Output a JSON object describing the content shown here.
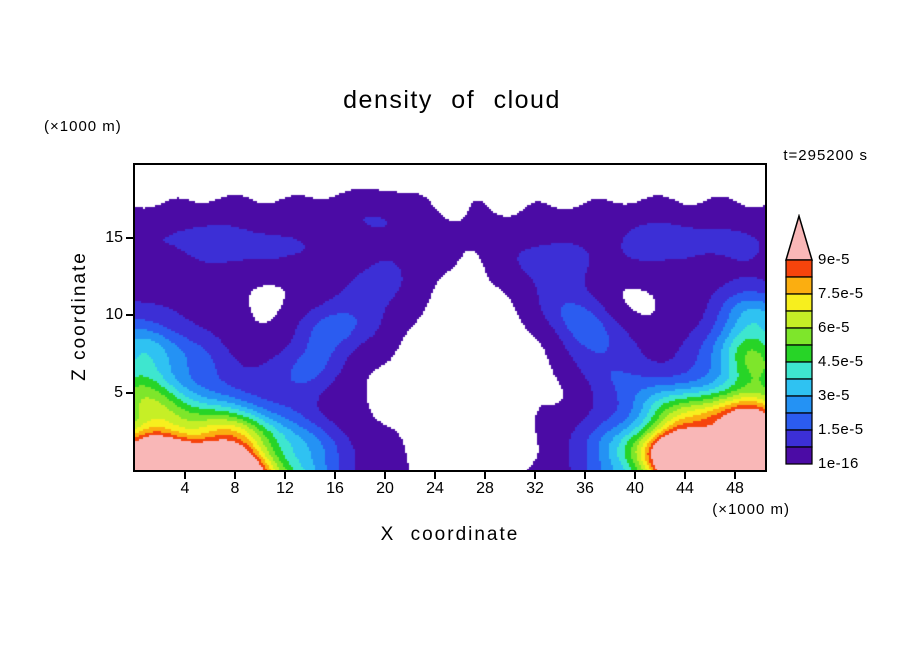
{
  "chart_data": {
    "type": "heatmap",
    "title": "density of cloud",
    "xlabel": "X coordinate",
    "ylabel": "Z coordinate",
    "x_unit_label": "(×1000 m)",
    "z_unit_label": "(×1000 m)",
    "time_annotation": "t=295200 s",
    "xlim": [
      0,
      50.4
    ],
    "zlim": [
      0,
      19.7
    ],
    "x_ticks": [
      4,
      8,
      12,
      16,
      20,
      24,
      28,
      32,
      36,
      40,
      44,
      48
    ],
    "z_ticks": [
      5,
      10,
      15
    ],
    "grid": false,
    "legend_position": "right-colorbar",
    "contour_levels": [
      1e-16,
      7.5e-06,
      1.5e-05,
      2.25e-05,
      3e-05,
      3.75e-05,
      4.5e-05,
      5.25e-05,
      6e-05,
      6.75e-05,
      7.5e-05,
      8.25e-05,
      9e-05
    ],
    "colorbar": {
      "boundary_labels_bottom_up": [
        "1e-16",
        "1.5e-5",
        "3e-5",
        "4.5e-5",
        "6e-5",
        "7.5e-5",
        "9e-5"
      ],
      "label_every_n_segments": 2,
      "segment_colors_bottom_up": [
        "#4b0ba5",
        "#3c2fd6",
        "#2b5cf0",
        "#2492f4",
        "#2fc2f2",
        "#3ee6cf",
        "#27d427",
        "#7ee62b",
        "#c6ef26",
        "#f7ef1e",
        "#fbae10",
        "#f6440c"
      ],
      "over_color": "#f9b7b7",
      "under_color": "#ffffff"
    },
    "field_model": {
      "comment": "approximate reconstruction of the shaded contour field; amplitudes in units of value_scale",
      "value_scale": 1e-05,
      "threshold": 0.1,
      "gaussians": [
        {
          "amp": 14.0,
          "x0": 5.0,
          "sx": 7.6,
          "z0": 0.0,
          "sz": 3.1,
          "tilt": 0
        },
        {
          "amp": 15.0,
          "x0": 46.5,
          "sx": 6.8,
          "z0": 0.5,
          "sz": 3.4,
          "tilt": 0
        },
        {
          "amp": 4.2,
          "x0": 0.5,
          "sx": 5.5,
          "z0": 5.6,
          "sz": 4.0,
          "tilt": 0
        },
        {
          "amp": 3.6,
          "x0": 50.0,
          "sx": 5.0,
          "z0": 5.0,
          "sz": 3.6,
          "tilt": 0
        },
        {
          "amp": 3.0,
          "x0": 49.5,
          "sx": 3.5,
          "z0": 9.0,
          "sz": 2.6,
          "tilt": 0
        },
        {
          "amp": 1.8,
          "x0": 7.5,
          "sx": 3.4,
          "z0": 8.5,
          "sz": 4.6,
          "tilt": 0.95
        },
        {
          "amp": 1.8,
          "x0": 44.0,
          "sx": 3.0,
          "z0": 8.5,
          "sz": 4.6,
          "tilt": -0.85
        },
        {
          "amp": 1.05,
          "x0": 7.5,
          "sx": 9.5,
          "z0": 14.6,
          "sz": 1.9,
          "tilt": 0
        },
        {
          "amp": 1.05,
          "x0": 43.0,
          "sx": 9.5,
          "z0": 14.6,
          "sz": 1.9,
          "tilt": 0
        },
        {
          "amp": 0.55,
          "x0": 19.0,
          "sx": 3.5,
          "z0": 16.3,
          "sz": 1.4,
          "tilt": 0
        },
        {
          "amp": 0.5,
          "x0": 33.0,
          "sx": 3.0,
          "z0": 13.2,
          "sz": 1.2,
          "tilt": 0
        }
      ],
      "wave": {
        "mul_amp": 0.2,
        "mk": [
          0.6,
          0.9,
          0.8,
          -0.3,
          1.2
        ],
        "add_amp": 0.045,
        "ak": [
          1.3,
          0.5,
          1.0,
          0.3
        ]
      }
    }
  }
}
